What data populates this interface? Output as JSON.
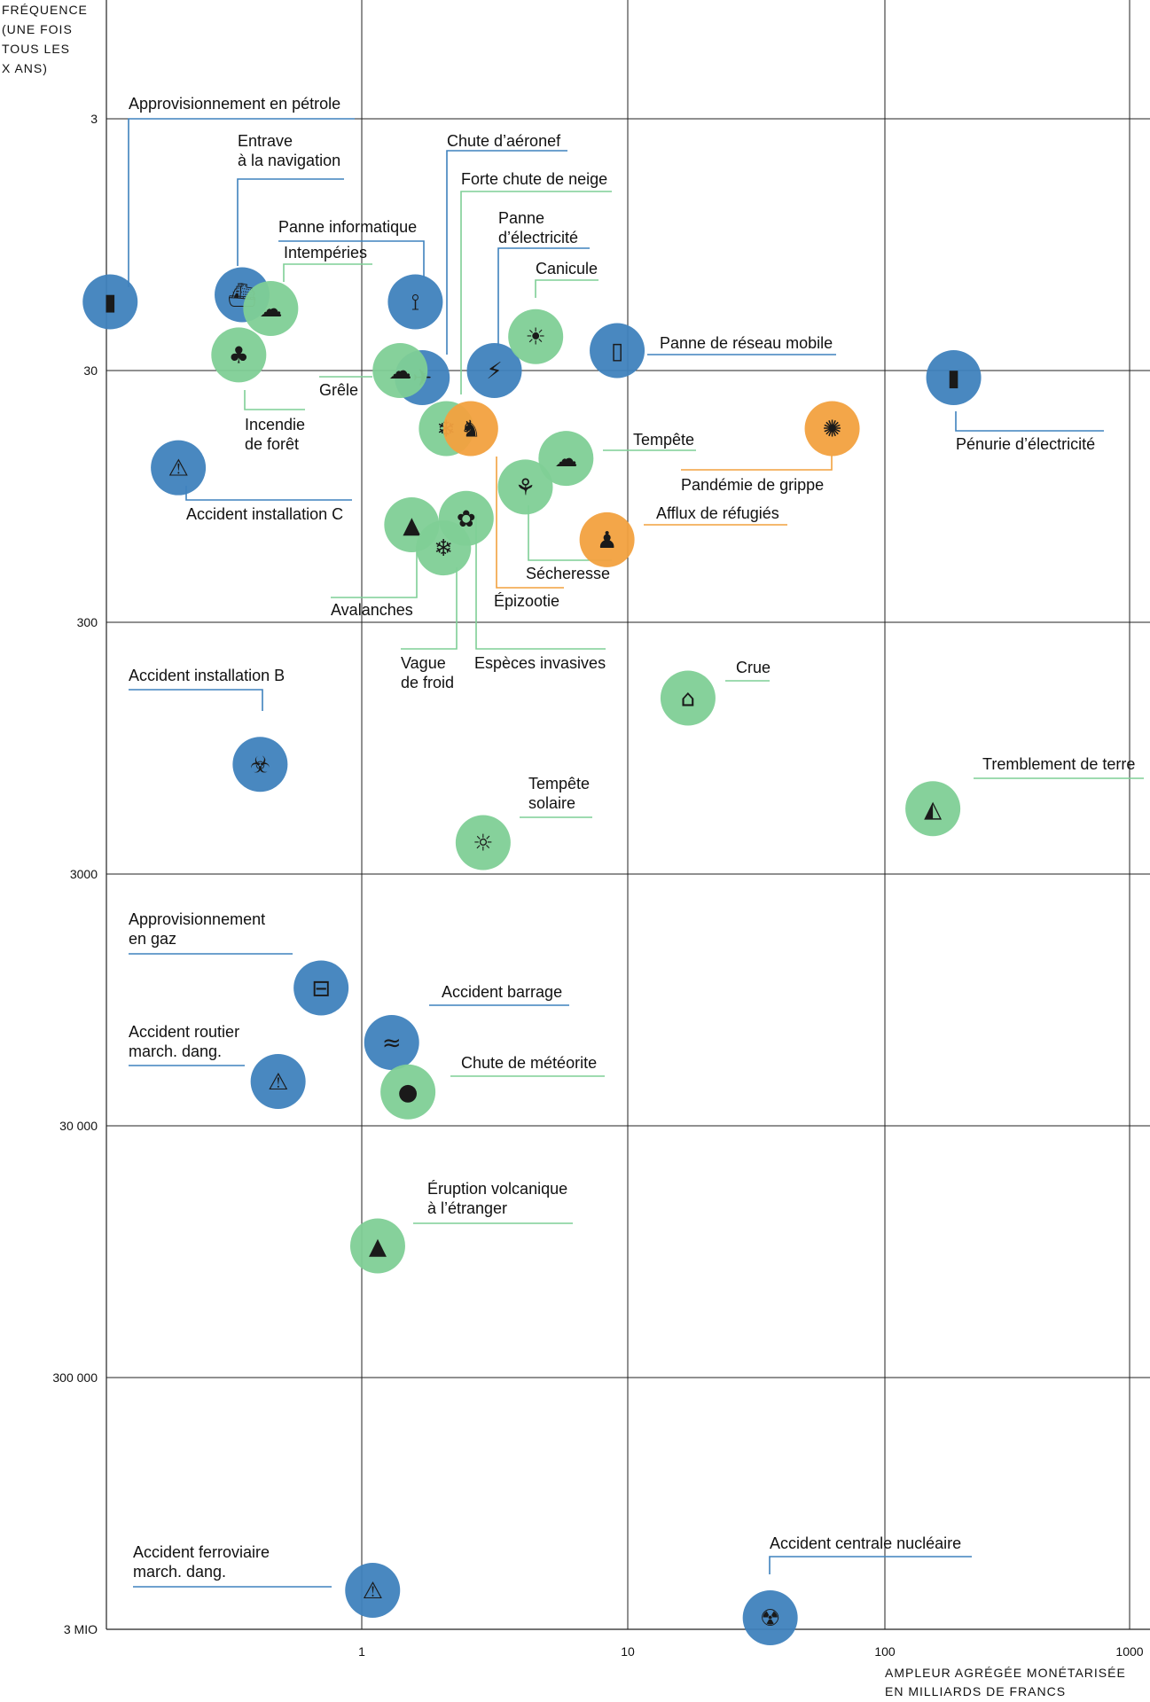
{
  "colors": {
    "blue": "#3f82bd",
    "green": "#7fcf96",
    "orange": "#f2a13f",
    "grid": "#222222"
  },
  "chart_data": {
    "type": "scatter",
    "y_axis": {
      "title": [
        "FRÉQUENCE",
        "(UNE FOIS",
        "TOUS LES",
        "X ANS)"
      ],
      "ticks": [
        "3",
        "30",
        "300",
        "3000",
        "30 000",
        "300 000",
        "3 MIO"
      ],
      "scale": "log",
      "range": [
        3,
        3000000
      ],
      "values": [
        3,
        30,
        300,
        3000,
        30000,
        300000,
        3000000
      ],
      "inverted": true
    },
    "x_axis": {
      "title": [
        "AMPLEUR AGRÉGÉE MONÉTARISÉE",
        "EN MILLIARDS DE FRANCS"
      ],
      "ticks": [
        "1",
        "10",
        "100",
        "1000"
      ],
      "scale": "log",
      "values": [
        1,
        10,
        100,
        1000
      ]
    },
    "grid": true,
    "category_colors": [
      "blue",
      "green",
      "orange"
    ],
    "points": [
      {
        "label": [
          "Approvisionnement en pétrole"
        ],
        "x": 0.11,
        "y": 16,
        "color": "blue",
        "icon": "oil-barrel-icon"
      },
      {
        "label": [
          "Entrave",
          "à la navigation"
        ],
        "x": 0.35,
        "y": 15,
        "color": "blue",
        "icon": "ship-icon"
      },
      {
        "label": [
          "Panne informatique"
        ],
        "x": 1.6,
        "y": 16,
        "color": "blue",
        "icon": "antenna-icon"
      },
      {
        "label": [
          "Intempéries"
        ],
        "x": 0.45,
        "y": 17,
        "color": "green",
        "icon": "storm-cloud-icon"
      },
      {
        "label": [
          "Chute d’aéronef"
        ],
        "x": 1.7,
        "y": 32,
        "color": "blue",
        "icon": "airplane-icon"
      },
      {
        "label": [
          "Forte chute de neige"
        ],
        "x": 2.1,
        "y": 51,
        "color": "green",
        "icon": "snow-cloud-icon"
      },
      {
        "label": [
          "Panne",
          "d’électricité"
        ],
        "x": 3.2,
        "y": 30,
        "color": "blue",
        "icon": "power-outage-icon"
      },
      {
        "label": [
          "Canicule"
        ],
        "x": 4.6,
        "y": 22,
        "color": "green",
        "icon": "thermometer-sun-icon"
      },
      {
        "label": [
          "Panne de réseau mobile"
        ],
        "x": 9.4,
        "y": 25,
        "color": "blue",
        "icon": "mobile-phone-icon"
      },
      {
        "label": [
          "Pénurie d’électricité"
        ],
        "x": 180,
        "y": 32,
        "color": "blue",
        "icon": "battery-icon"
      },
      {
        "label": [
          "Incendie",
          "de forêt"
        ],
        "x": 0.34,
        "y": 26,
        "color": "green",
        "icon": "forest-fire-icon"
      },
      {
        "label": [
          "Grêle"
        ],
        "x": 1.4,
        "y": 30,
        "color": "green",
        "icon": "hail-cloud-icon"
      },
      {
        "label": [
          "Accident installation C"
        ],
        "x": 0.2,
        "y": 73,
        "color": "blue",
        "icon": "factory-hazard-icon"
      },
      {
        "label": [
          "Tempête"
        ],
        "x": 6,
        "y": 67,
        "color": "green",
        "icon": "wind-cloud-icon"
      },
      {
        "label": [
          "Pandémie de grippe"
        ],
        "x": 62,
        "y": 51,
        "color": "orange",
        "icon": "virus-icon"
      },
      {
        "label": [
          "Épizootie"
        ],
        "x": 2.6,
        "y": 51,
        "color": "orange",
        "icon": "animal-icon"
      },
      {
        "label": [
          "Afflux de réfugiés"
        ],
        "x": 8.6,
        "y": 141,
        "color": "orange",
        "icon": "people-icon"
      },
      {
        "label": [
          "Sécheresse"
        ],
        "x": 4.2,
        "y": 87,
        "color": "green",
        "icon": "dry-tree-icon"
      },
      {
        "label": [
          "Avalanches"
        ],
        "x": 1.55,
        "y": 123,
        "color": "green",
        "icon": "avalanche-icon"
      },
      {
        "label": [
          "Espèces invasives"
        ],
        "x": 2.5,
        "y": 116,
        "color": "green",
        "icon": "beetle-icon"
      },
      {
        "label": [
          "Vague",
          "de froid"
        ],
        "x": 2.05,
        "y": 152,
        "color": "green",
        "icon": "cold-thermometer-icon"
      },
      {
        "label": [
          "Accident installation B"
        ],
        "x": 0.41,
        "y": 1100,
        "color": "blue",
        "icon": "factory-biohazard-icon"
      },
      {
        "label": [
          "Crue"
        ],
        "x": 17.5,
        "y": 600,
        "color": "green",
        "icon": "flood-house-icon"
      },
      {
        "label": [
          "Tremblement de terre"
        ],
        "x": 150,
        "y": 1650,
        "color": "green",
        "icon": "earthquake-icon"
      },
      {
        "label": [
          "Tempête",
          "solaire"
        ],
        "x": 2.9,
        "y": 2250,
        "color": "green",
        "icon": "sun-icon"
      },
      {
        "label": [
          "Approvisionnement",
          "en gaz"
        ],
        "x": 0.7,
        "y": 8500,
        "color": "blue",
        "icon": "gas-pipe-icon"
      },
      {
        "label": [
          "Accident barrage"
        ],
        "x": 1.3,
        "y": 14000,
        "color": "blue",
        "icon": "dam-wave-icon"
      },
      {
        "label": [
          "Accident routier",
          "march. dang."
        ],
        "x": 0.48,
        "y": 20000,
        "color": "blue",
        "icon": "hazmat-truck-icon"
      },
      {
        "label": [
          "Chute de météorite"
        ],
        "x": 1.5,
        "y": 22000,
        "color": "green",
        "icon": "meteorite-icon"
      },
      {
        "label": [
          "Éruption volcanique",
          "à l’étranger"
        ],
        "x": 1.15,
        "y": 90000,
        "color": "green",
        "icon": "volcano-icon"
      },
      {
        "label": [
          "Accident ferroviaire",
          "march. dang."
        ],
        "x": 1.1,
        "y": 2100000,
        "color": "blue",
        "icon": "hazmat-train-icon"
      },
      {
        "label": [
          "Accident centrale nucléaire"
        ],
        "x": 36,
        "y": 2700000,
        "color": "blue",
        "icon": "nuclear-plant-icon"
      }
    ]
  }
}
